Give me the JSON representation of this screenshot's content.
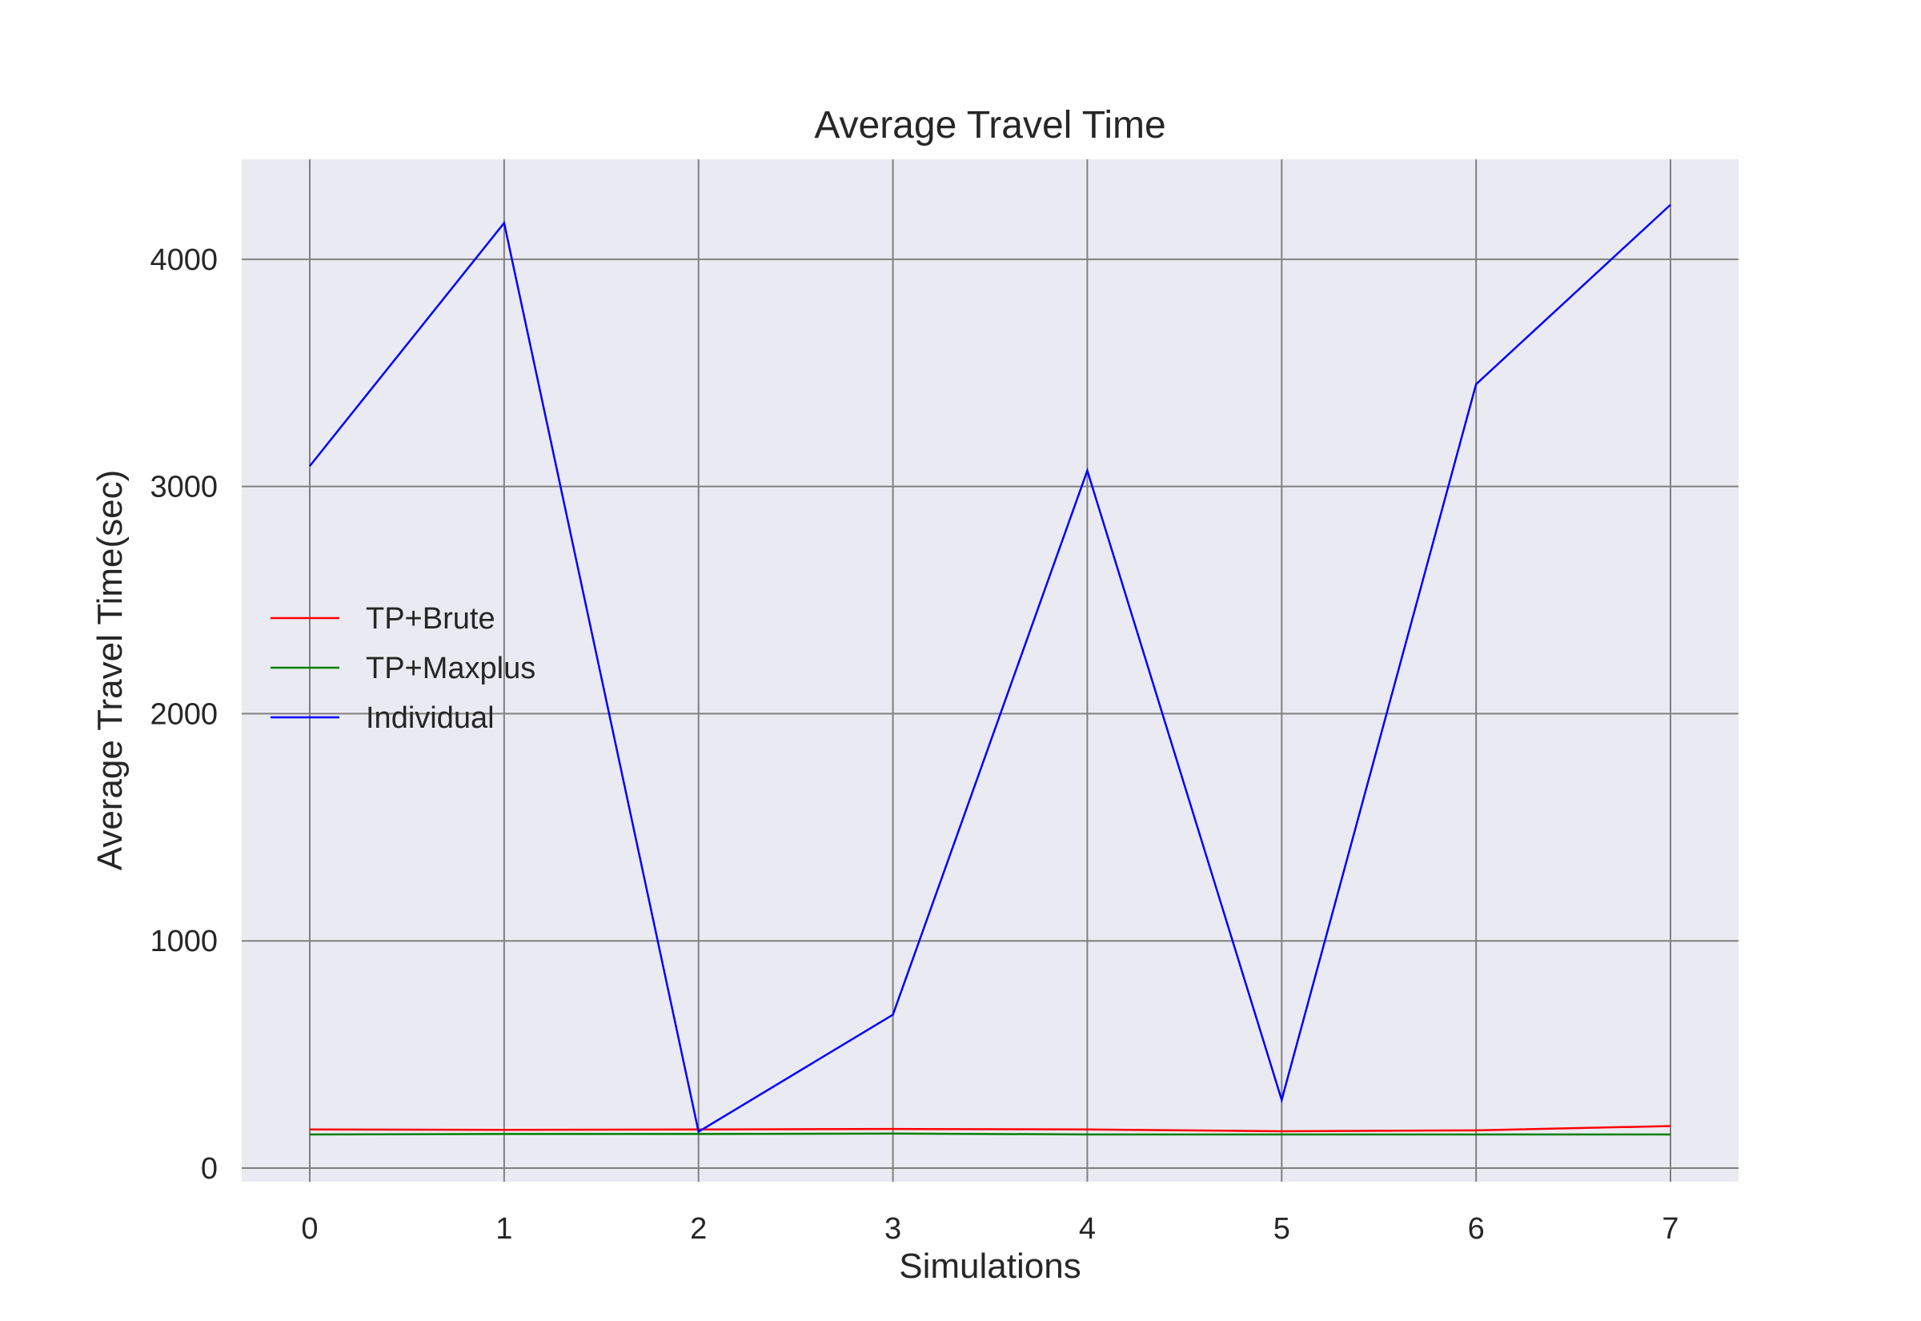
{
  "chart_data": {
    "type": "line",
    "title": "Average Travel Time",
    "xlabel": "Simulations",
    "ylabel": "Average Travel Time(sec)",
    "x": [
      0,
      1,
      2,
      3,
      4,
      5,
      6,
      7
    ],
    "xlim": [
      -0.35,
      7.35
    ],
    "ylim": [
      -60,
      4440
    ],
    "xticks": [
      0,
      1,
      2,
      3,
      4,
      5,
      6,
      7
    ],
    "yticks": [
      0,
      1000,
      2000,
      3000,
      4000
    ],
    "grid": true,
    "background": "#eaeaf2",
    "grid_color": "#808080",
    "legend_position": "center-left",
    "series": [
      {
        "name": "TP+Brute",
        "color": "#ff0000",
        "values": [
          170,
          168,
          170,
          172,
          170,
          162,
          166,
          185
        ]
      },
      {
        "name": "TP+Maxplus",
        "color": "#008000",
        "values": [
          148,
          150,
          150,
          152,
          148,
          148,
          148,
          148
        ]
      },
      {
        "name": "Individual",
        "color": "#0000ff",
        "values": [
          3090,
          4160,
          160,
          675,
          3070,
          300,
          3450,
          4240
        ]
      }
    ]
  }
}
